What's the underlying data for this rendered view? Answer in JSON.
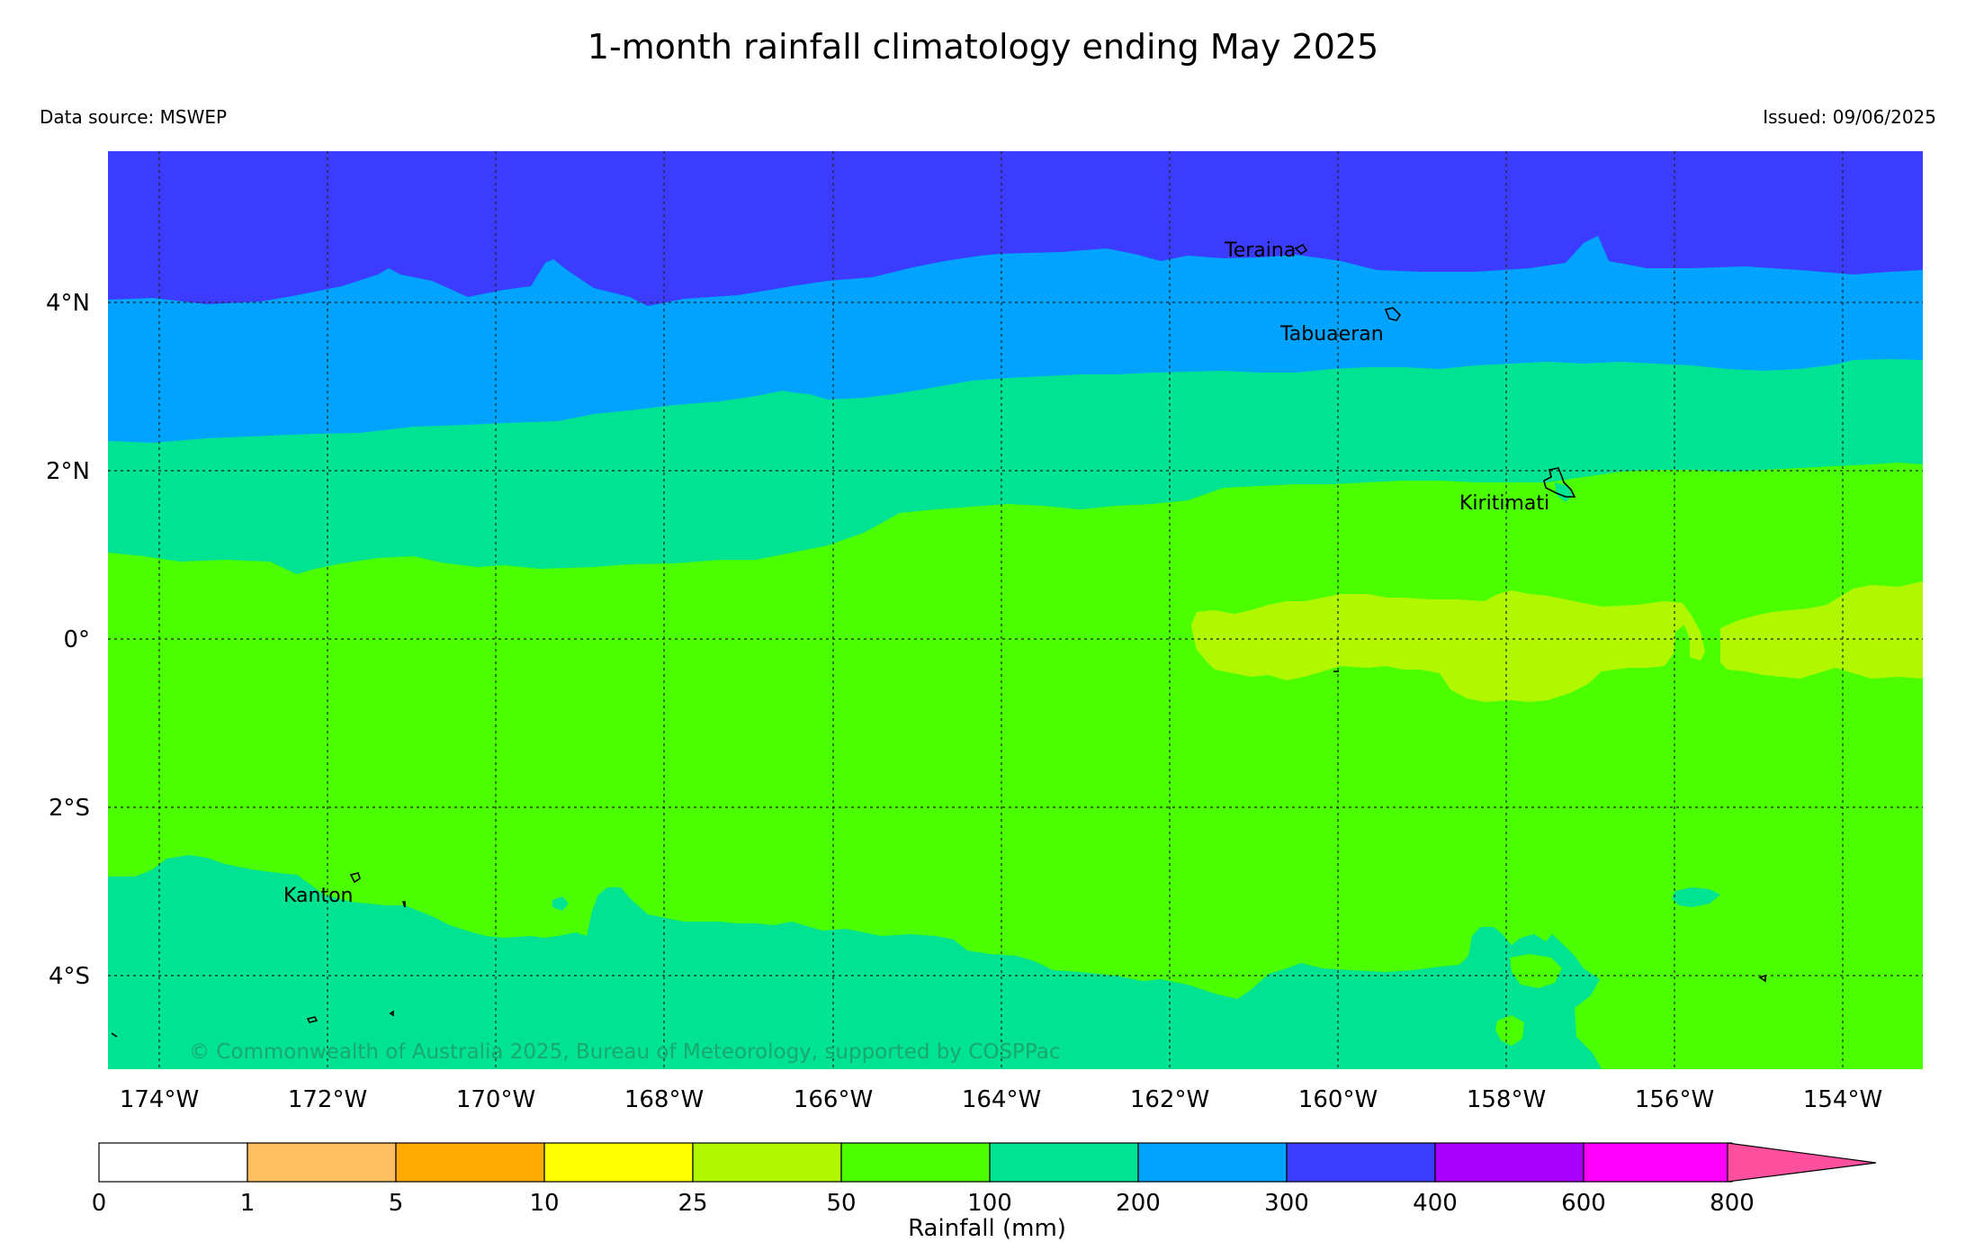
{
  "title": "1-month rainfall climatology ending May 2025",
  "data_source": "Data source: MSWEP",
  "issued": "Issued: 09/06/2025",
  "copyright": "© Commonwealth of Australia 2025, Bureau of Meteorology, supported by COSPPac",
  "lon_labels": [
    "174°W",
    "172°W",
    "170°W",
    "168°W",
    "166°W",
    "164°W",
    "162°W",
    "160°W",
    "158°W",
    "156°W",
    "154°W"
  ],
  "lat_labels": [
    "4°N",
    "2°N",
    "0°",
    "2°S",
    "4°S"
  ],
  "places": {
    "teraina": "Teraina",
    "tabuaeran": "Tabuaeran",
    "kiritimati": "Kiritimati",
    "kanton": "Kanton"
  },
  "colorbar": {
    "label": "Rainfall (mm)",
    "ticks": [
      "0",
      "1",
      "5",
      "10",
      "25",
      "50",
      "100",
      "200",
      "300",
      "400",
      "600",
      "800"
    ],
    "colors": [
      "#ffffff",
      "#ffbf60",
      "#ffab00",
      "#ffff00",
      "#b0f700",
      "#4cff00",
      "#00e393",
      "#00a3ff",
      "#3c3cff",
      "#a800ff",
      "#ff00ff",
      "#ff4f9f"
    ]
  },
  "rainfall_classes_shown": [
    "25-50",
    "50-100",
    "100-200",
    "200-300",
    "300-400"
  ]
}
